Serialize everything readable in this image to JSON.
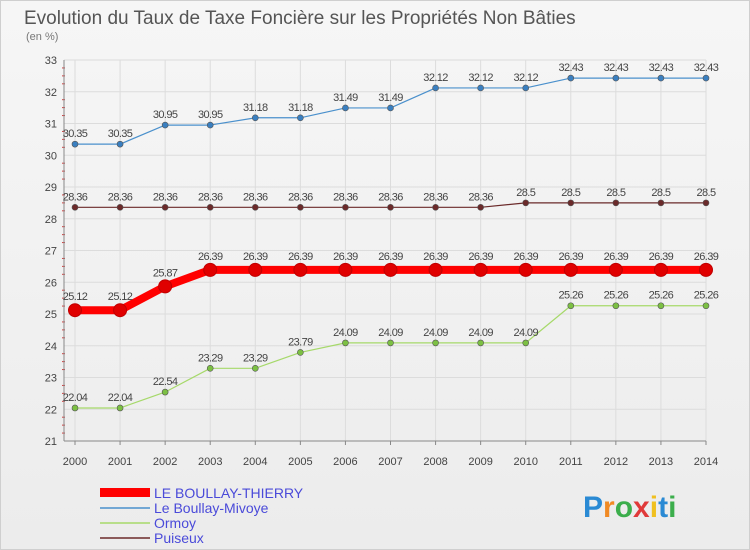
{
  "chart_data": {
    "type": "line",
    "title": "Evolution du Taux de Taxe Foncière sur les Propriétés Non Bâties",
    "subtitle": "(en %)",
    "xlabel": "",
    "ylabel": "",
    "x": [
      "2000",
      "2001",
      "2002",
      "2003",
      "2004",
      "2005",
      "2006",
      "2007",
      "2008",
      "2009",
      "2010",
      "2011",
      "2012",
      "2013",
      "2014"
    ],
    "ylim": [
      21,
      33
    ],
    "yticks": [
      "21",
      "22",
      "23",
      "24",
      "25",
      "26",
      "27",
      "28",
      "29",
      "30",
      "31",
      "32",
      "33"
    ],
    "grid": true,
    "legend_position": "bottom-left",
    "series": [
      {
        "name": "Le Boullay-Mivoye",
        "color": "#4a90cc",
        "marker": "#3a7fc0",
        "width": 1.2,
        "values": [
          30.35,
          30.35,
          30.95,
          30.95,
          31.18,
          31.18,
          31.49,
          31.49,
          32.12,
          32.12,
          32.12,
          32.43,
          32.43,
          32.43,
          32.43
        ],
        "labels": [
          "30.35",
          "30.35",
          "30.95",
          "30.95",
          "31.18",
          "31.18",
          "31.49",
          "31.49",
          "32.12",
          "32.12",
          "32.12",
          "32.43",
          "32.43",
          "32.43",
          "32.43"
        ]
      },
      {
        "name": "Puiseux",
        "color": "#6b2a2a",
        "marker": "#6b2a2a",
        "width": 1.2,
        "values": [
          28.36,
          28.36,
          28.36,
          28.36,
          28.36,
          28.36,
          28.36,
          28.36,
          28.36,
          28.36,
          28.5,
          28.5,
          28.5,
          28.5,
          28.5
        ],
        "labels": [
          "28.36",
          "28.36",
          "28.36",
          "28.36",
          "28.36",
          "28.36",
          "28.36",
          "28.36",
          "28.36",
          "28.36",
          "28.5",
          "28.5",
          "28.5",
          "28.5",
          "28.5"
        ]
      },
      {
        "name": "LE BOULLAY-THIERRY",
        "color": "#ff0000",
        "marker": "#e00000",
        "width": 8,
        "values": [
          25.12,
          25.12,
          25.87,
          26.39,
          26.39,
          26.39,
          26.39,
          26.39,
          26.39,
          26.39,
          26.39,
          26.39,
          26.39,
          26.39,
          26.39
        ],
        "labels": [
          "25.12",
          "25.12",
          "25.87",
          "26.39",
          "26.39",
          "26.39",
          "26.39",
          "26.39",
          "26.39",
          "26.39",
          "26.39",
          "26.39",
          "26.39",
          "26.39",
          "26.39"
        ]
      },
      {
        "name": "Ormoy",
        "color": "#a6d96a",
        "marker": "#7cc043",
        "width": 1.2,
        "values": [
          22.04,
          22.04,
          22.54,
          23.29,
          23.29,
          23.79,
          24.09,
          24.09,
          24.09,
          24.09,
          24.09,
          25.26,
          25.26,
          25.26,
          25.26
        ],
        "labels": [
          "22.04",
          "22.04",
          "22.54",
          "23.29",
          "23.29",
          "23.79",
          "24.09",
          "24.09",
          "24.09",
          "24.09",
          "24.09",
          "25.26",
          "25.26",
          "25.26",
          "25.26"
        ]
      }
    ],
    "legend": [
      {
        "name": "LE BOULLAY-THIERRY",
        "color": "#ff0000",
        "thick": true
      },
      {
        "name": "Le Boullay-Mivoye",
        "color": "#4a90cc",
        "thick": false
      },
      {
        "name": "Ormoy",
        "color": "#a6d96a",
        "thick": false
      },
      {
        "name": "Puiseux",
        "color": "#6b2a2a",
        "thick": false
      }
    ]
  },
  "logo": {
    "text": "Proxiti",
    "letters": [
      {
        "ch": "P",
        "color": "#2a8ad4"
      },
      {
        "ch": "r",
        "color": "#f08a24"
      },
      {
        "ch": "o",
        "color": "#3cae4c"
      },
      {
        "ch": "x",
        "color": "#e03a3a"
      },
      {
        "ch": "i",
        "color": "#f0c020"
      },
      {
        "ch": "t",
        "color": "#2a8ad4"
      },
      {
        "ch": "i",
        "color": "#3cae4c"
      }
    ]
  }
}
